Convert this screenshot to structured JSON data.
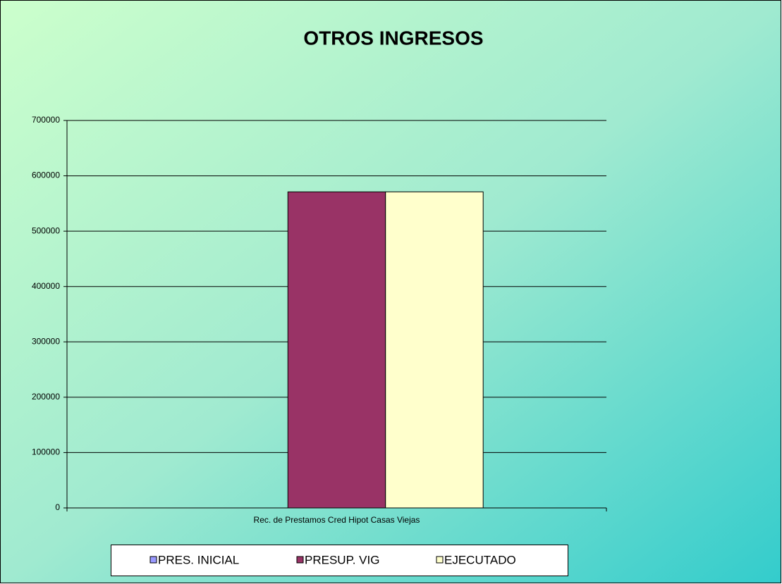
{
  "chart_data": {
    "type": "bar",
    "title": "OTROS INGRESOS",
    "categories": [
      "Rec. de Prestamos Cred Hipot Casas Viejas"
    ],
    "series": [
      {
        "name": "PRES. INICIAL",
        "color": "#9999ff",
        "values": [
          0
        ]
      },
      {
        "name": "PRESUP. VIG",
        "color": "#993366",
        "values": [
          571000
        ]
      },
      {
        "name": "EJECUTADO",
        "color": "#ffffcc",
        "values": [
          571000
        ]
      }
    ],
    "ylim": [
      0,
      700000
    ],
    "yticks": [
      0,
      100000,
      200000,
      300000,
      400000,
      500000,
      600000,
      700000
    ],
    "grid": true,
    "legend": "bottom"
  }
}
